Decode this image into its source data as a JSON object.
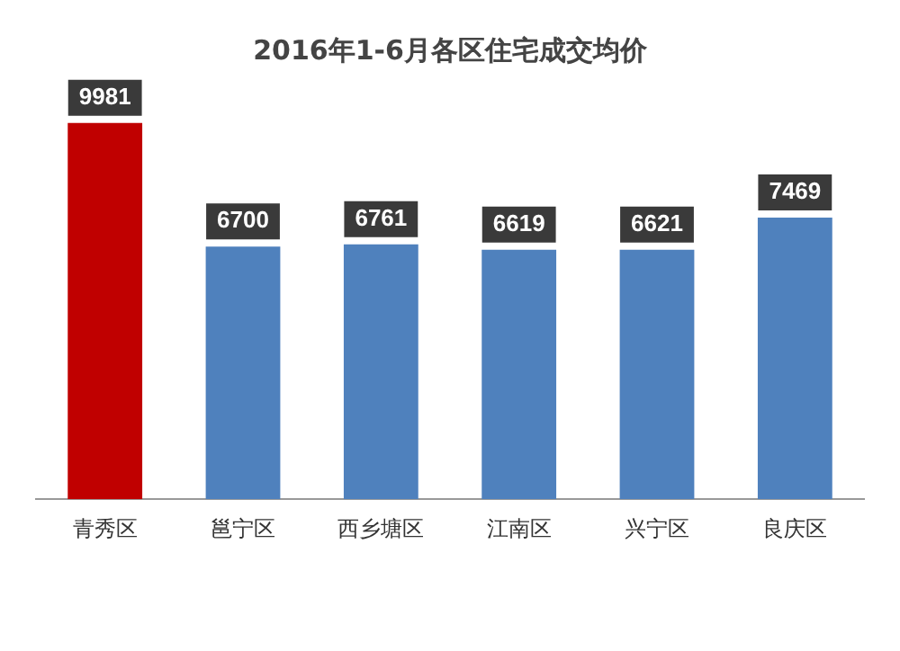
{
  "chart_data": {
    "type": "bar",
    "title": "2016年1-6月各区住宅成交均价",
    "categories": [
      "青秀区",
      "邕宁区",
      "西乡塘区",
      "江南区",
      "兴宁区",
      "良庆区"
    ],
    "values": [
      9981,
      6700,
      6761,
      6619,
      6621,
      7469
    ],
    "colors": [
      "#c00000",
      "#4f81bd",
      "#4f81bd",
      "#4f81bd",
      "#4f81bd",
      "#4f81bd"
    ],
    "data_labels": true,
    "grid": false,
    "legend": false
  }
}
